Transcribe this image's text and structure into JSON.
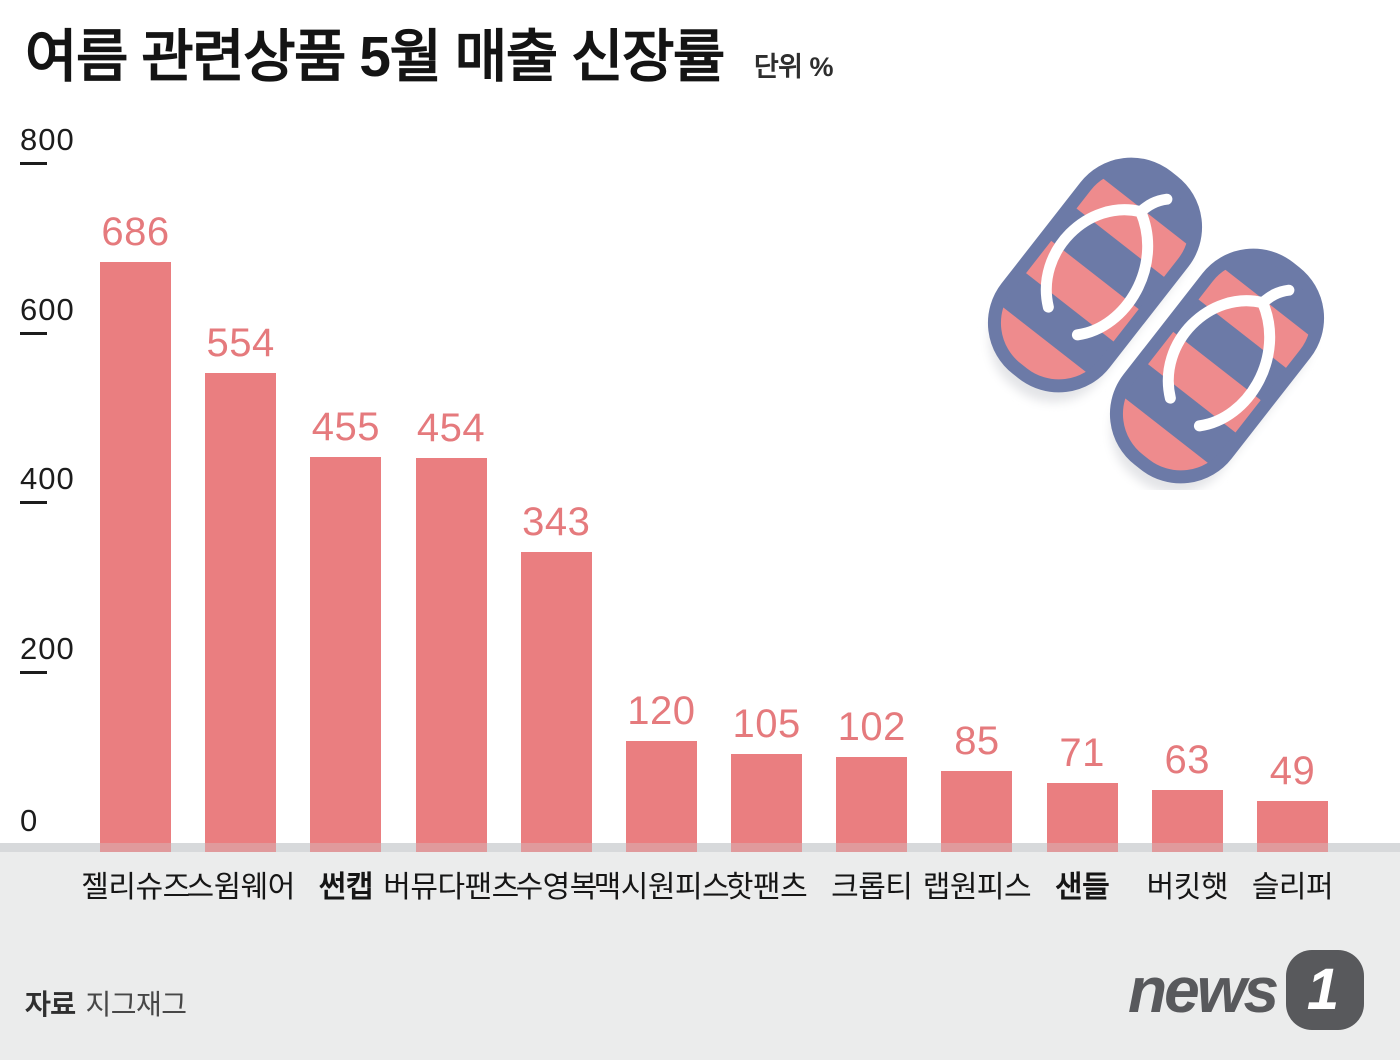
{
  "header": {
    "title": "여름 관련상품 5월 매출 신장률",
    "unit_label": "단위 %"
  },
  "chart_data": {
    "type": "bar",
    "title": "여름 관련상품 5월 매출 신장률",
    "unit": "%",
    "categories": [
      "젤리슈즈",
      "스윔웨어",
      "썬캡",
      "버뮤다팬츠",
      "수영복",
      "맥시원피스",
      "핫팬츠",
      "크롭티",
      "랩원피스",
      "샌들",
      "버킷햇",
      "슬리퍼"
    ],
    "values": [
      686,
      554,
      455,
      454,
      343,
      120,
      105,
      102,
      85,
      71,
      63,
      49
    ],
    "bold_categories": [
      "썬캡",
      "샌들"
    ],
    "ylim": [
      0,
      800
    ],
    "yticks": [
      0,
      200,
      400,
      600,
      800
    ],
    "grid": false,
    "legend": false,
    "value_labels": true,
    "xlabel": "",
    "ylabel": "",
    "colors": {
      "bar": "#ea7e80",
      "bar_base": "#e09a9c",
      "value_label": "#e57a7d",
      "axis_text": "#1c1c1c",
      "baseline_strip": "#d7d9db",
      "footer_bg": "#ebecec"
    }
  },
  "footer": {
    "source_label": "자료",
    "source_value": "지그재그"
  },
  "logo": {
    "text": "news",
    "badge": "1",
    "color": "#58595c"
  },
  "decoration": {
    "name": "flip-flops-illustration",
    "blue": "#6c7aa7",
    "salmon": "#ee8b8d",
    "strap": "#ffffff",
    "shadow": "#e3e4e7"
  }
}
